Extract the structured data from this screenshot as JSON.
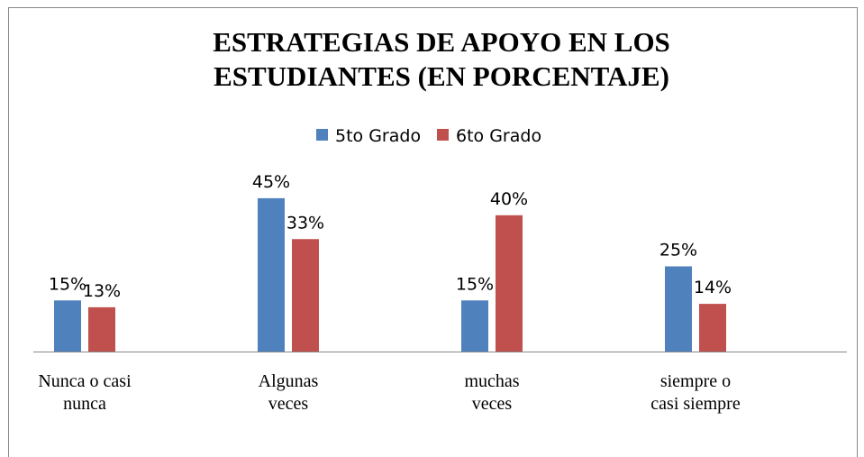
{
  "chart_data": {
    "type": "bar",
    "title": "ESTRATEGIAS DE APOYO EN LOS ESTUDIANTES (EN PORCENTAJE)",
    "categories": [
      "Nunca o casi nunca",
      "Algunas veces",
      "muchas veces",
      "siempre o casi siempre"
    ],
    "series": [
      {
        "name": "5to Grado",
        "color": "#4f81bd",
        "values": [
          15,
          45,
          15,
          25
        ],
        "value_labels": [
          "15%",
          "45%",
          "15%",
          "25%"
        ]
      },
      {
        "name": "6to Grado",
        "color": "#c0504d",
        "values": [
          13,
          33,
          40,
          14
        ],
        "value_labels": [
          "13%",
          "33%",
          "40%",
          "14%"
        ]
      }
    ],
    "ylim": [
      0,
      50
    ],
    "legend": "top"
  }
}
